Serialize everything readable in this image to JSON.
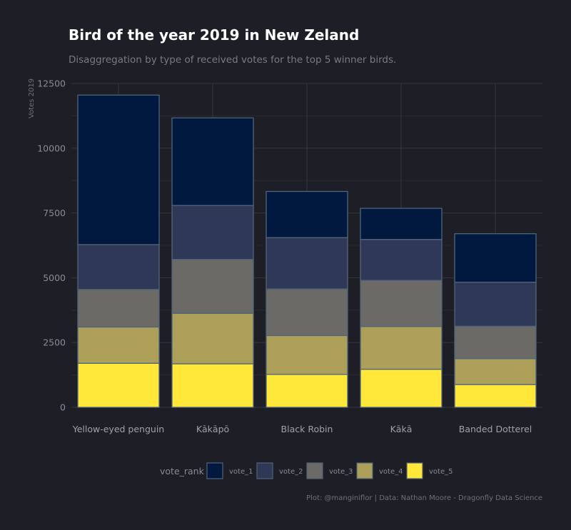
{
  "chart_data": {
    "type": "bar",
    "stacked": true,
    "title": "Bird of the year 2019 in New Zeland",
    "subtitle": "Disaggregation by type of received votes for the top 5 winner birds.",
    "ylabel": "Votes 2019",
    "xlabel": "",
    "ylim": [
      0,
      12500
    ],
    "yticks": [
      0,
      2500,
      5000,
      7500,
      10000,
      12500
    ],
    "ytick_labels": [
      "0",
      "2500",
      "5000",
      "7500",
      "10000",
      "12500"
    ],
    "grid": true,
    "categories": [
      "Yellow-eyed penguin",
      "Kākāpō",
      "Black Robin",
      "Kākā",
      "Banded Dotterel"
    ],
    "series": [
      {
        "name": "vote_5",
        "color": "#ffe83a",
        "values": [
          1700,
          1680,
          1270,
          1470,
          880
        ]
      },
      {
        "name": "vote_4",
        "color": "#ada05b",
        "values": [
          1400,
          1950,
          1500,
          1650,
          1000
        ]
      },
      {
        "name": "vote_3",
        "color": "#6b6a66",
        "values": [
          1450,
          2080,
          1800,
          1780,
          1250
        ]
      },
      {
        "name": "vote_2",
        "color": "#2f3856",
        "values": [
          1730,
          2080,
          1980,
          1580,
          1700
        ]
      },
      {
        "name": "vote_1",
        "color": "#01193f",
        "values": [
          5770,
          3380,
          1780,
          1200,
          1870
        ]
      }
    ],
    "legend": {
      "title": "vote_rank",
      "position": "bottom",
      "items": [
        {
          "label": "vote_1",
          "color": "#01193f"
        },
        {
          "label": "vote_2",
          "color": "#2f3856"
        },
        {
          "label": "vote_3",
          "color": "#6b6a66"
        },
        {
          "label": "vote_4",
          "color": "#ada05b"
        },
        {
          "label": "vote_5",
          "color": "#ffe83a"
        }
      ]
    },
    "caption": "Plot: @manginiflor | Data: Nathan Moore - Dragonfly Data Science"
  }
}
